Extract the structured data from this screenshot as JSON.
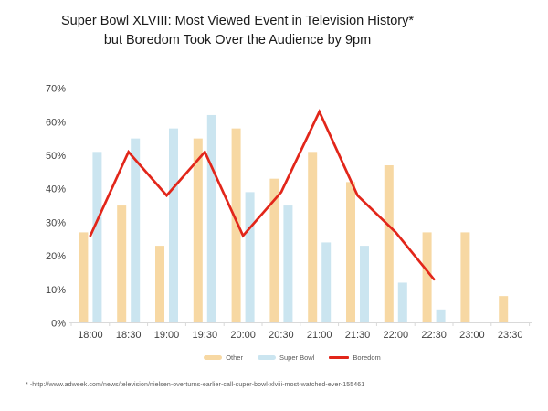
{
  "title": {
    "line1": "Super Bowl XLVIII: Most Viewed Event in Television History*",
    "line2": "but Boredom Took Over the Audience by 9pm"
  },
  "footnote": "* -http://www.adweek.com/news/television/nielsen-overturns-earlier-call-super-bowl-xlviii-most-watched-ever-155461",
  "colors": {
    "other": "#F7D8A3",
    "super_bowl": "#CBE5F0",
    "boredom": "#E2261A",
    "axis_text": "#3F3F3F",
    "axis_line": "#D9D9D9",
    "title_text": "#1A1A1A",
    "legend_text": "#595959"
  },
  "chart_data": {
    "type": "combo-bar-line",
    "title": "Super Bowl XLVIII: Most Viewed Event in Television History* but Boredom Took Over the Audience by 9pm",
    "categories": [
      "18:00",
      "18:30",
      "19:00",
      "19:30",
      "20:00",
      "20:30",
      "21:00",
      "21:30",
      "22:00",
      "22:30",
      "23:00",
      "23:30"
    ],
    "series": [
      {
        "name": "Other",
        "type": "bar",
        "color": "#F7D8A3",
        "values": [
          27,
          35,
          23,
          55,
          58,
          43,
          51,
          42,
          47,
          27,
          27,
          8
        ]
      },
      {
        "name": "Super Bowl",
        "type": "bar",
        "color": "#CBE5F0",
        "values": [
          51,
          55,
          58,
          62,
          39,
          35,
          24,
          23,
          12,
          4,
          null,
          null
        ]
      },
      {
        "name": "Boredom",
        "type": "line",
        "color": "#E2261A",
        "values": [
          26,
          51,
          38,
          51,
          26,
          39,
          63,
          38,
          27,
          13,
          null,
          null
        ]
      }
    ],
    "xlabel": "",
    "ylabel": "",
    "ylim": [
      0,
      70
    ],
    "y_ticks": [
      "0%",
      "10%",
      "20%",
      "30%",
      "40%",
      "50%",
      "60%",
      "70%"
    ],
    "grid": false,
    "legend_position": "bottom"
  }
}
